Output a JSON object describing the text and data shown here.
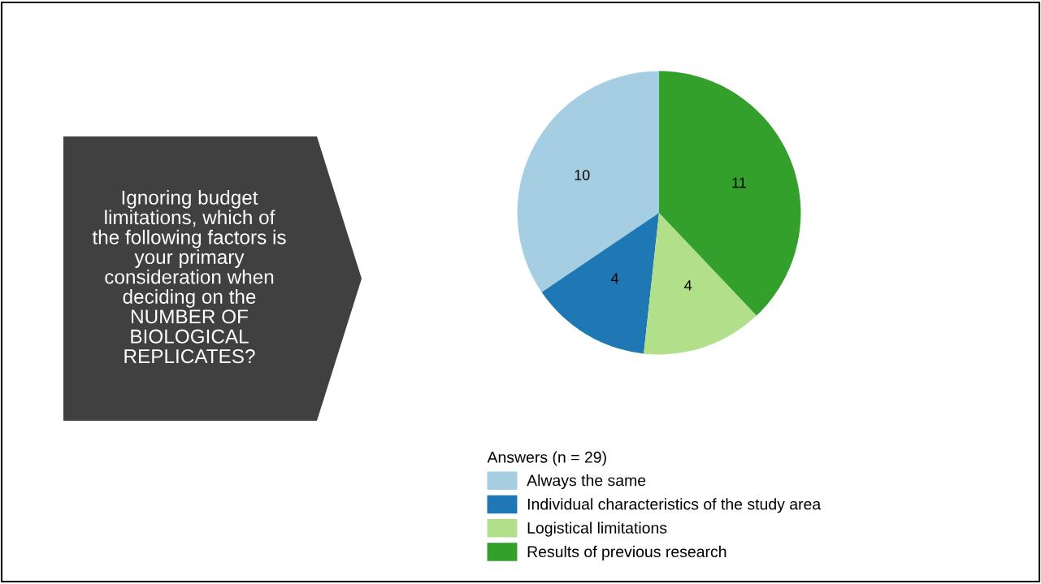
{
  "chart_data": {
    "type": "pie",
    "title": "Ignoring budget\nlimitations, which of\nthe following factors is\nyour primary\nconsideration when\ndeciding on the\nNUMBER OF\nBIOLOGICAL\nREPLICATES?",
    "legend_title": "Answers (n = 29)",
    "categories": [
      "Always the same",
      "Individual characteristics of the study area",
      "Logistical limitations",
      "Results of previous research"
    ],
    "values": [
      10,
      4,
      4,
      11
    ],
    "colors": [
      "#a6cee3",
      "#1f78b4",
      "#b2df8a",
      "#33a02c"
    ],
    "data_labels": true,
    "legend": "bottom"
  }
}
